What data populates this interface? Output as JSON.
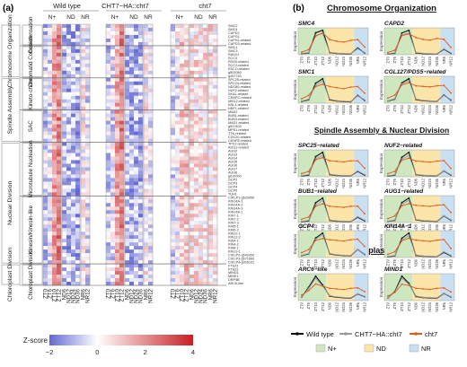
{
  "panel_a": {
    "letter": "(a)",
    "groups": [
      "Wild type",
      "CHT7−HA::cht7",
      "cht7"
    ],
    "subgroups": [
      "N+",
      "ND",
      "NR"
    ],
    "columns": [
      "ZT0",
      "ZT6",
      "ZT10",
      "ZT12",
      "ND6",
      "ND12",
      "ND24",
      "ND36",
      "NR6",
      "NR12"
    ],
    "categories": [
      {
        "name": "Chromosome Organization",
        "subs": [
          {
            "name": "Con-densation",
            "genes": [
              "SMC2",
              "SMC4",
              "CAPD2",
              "CAPG1",
              "CAPH1-related",
              "CAPD3-related"
            ]
          },
          {
            "name": "Chromatid Cohesion",
            "genes": [
              "SMC1",
              "SMC3",
              "RAD21",
              "SCC3",
              "PDS5-related",
              "SCC2-related",
              "ESCO-related",
              "g502050",
              "g457740"
            ]
          }
        ]
      },
      {
        "name": "Spindle Assembly",
        "subs": [
          {
            "name": "Kineto-chore",
            "genes": [
              "SPC25-related",
              "SPC24-related",
              "NDC80-related",
              "NUF2-related",
              "SKA1-related",
              "CENPC-related",
              "MIS12-related",
              "KNL1-related",
              "NNF1-related"
            ]
          },
          {
            "name": "SAC",
            "genes": [
              "MAD2",
              "BUB1-related",
              "BUB3-related",
              "MAD1-related",
              "g537400",
              "MPS1-related",
              "TTK-related",
              "CDC20-related",
              "CENPE-related"
            ]
          }
        ]
      },
      {
        "name": "Nuclear Division",
        "subs": [
          {
            "name": "Microtubule Nucleation",
            "genes": [
              "TPX2-related",
              "AUG1-related",
              "AUG2",
              "AUG3",
              "AUG4",
              "AUG5",
              "AUG6",
              "AUG7",
              "AUG8",
              "g610000",
              "GCP2",
              "GCP3",
              "GCP4",
              "GCP5",
              "TUH1"
            ]
          },
          {
            "name": "Kinesin/Kinesin-like",
            "genes": [
              "CrKLP1-g520050",
              "KIN14A-1",
              "KIN14A-2",
              "KIN14A-3",
              "KIN14B-1",
              "KIN7-1",
              "KIN7-2",
              "KIN7-3",
              "KIN5-1",
              "KIN5-2",
              "KIN12-1",
              "KIN12-2",
              "KIN4-1",
              "KIN4-2",
              "KIN8-1",
              "KIN13-1",
              "CrKLP2-g542430",
              "CrKLP3-g571660",
              "CrKLP4-g006101"
            ]
          }
        ]
      },
      {
        "name": "Chloroplast Division",
        "subs": [
          {
            "name": "Chloroplast Division",
            "genes": [
              "FTSZ1",
              "FTSZ2",
              "MIND1",
              "MINE1",
              "DRP5B",
              "ARC6-like"
            ]
          }
        ]
      }
    ],
    "scale": {
      "title": "Z-score",
      "ticks": [
        "−2",
        "0",
        "2",
        "4"
      ]
    }
  },
  "panel_b": {
    "letter": "(b)",
    "sections": [
      "Chromosome Organization",
      "Spindle Assembly & Nuclear Division",
      "Chloroplast Division"
    ],
    "ylabel": "Expression",
    "x_ticks": [
      "ZT0",
      "ZT6",
      "ZT10",
      "ZT12",
      "ND6",
      "ND12",
      "ND24",
      "ND36",
      "NR6",
      "NR12"
    ],
    "legend": {
      "lines": [
        {
          "name": "Wild type",
          "color": "#111111"
        },
        {
          "name": "CHT7−HA::cht7",
          "color": "#9a9a9a"
        },
        {
          "name": "cht7",
          "color": "#e05a20"
        }
      ],
      "areas": [
        {
          "name": "N+",
          "color": "#cfe7bf"
        },
        {
          "name": "ND",
          "color": "#fbe5a8"
        },
        {
          "name": "NR",
          "color": "#c9dff2"
        }
      ]
    }
  },
  "chart_data": [
    {
      "type": "heatmap",
      "title": "",
      "columns": [
        "ZT0",
        "ZT6",
        "ZT10",
        "ZT12",
        "ND6",
        "ND12",
        "ND24",
        "ND36",
        "NR6",
        "NR12"
      ],
      "value_range": [
        -2,
        4
      ],
      "note_rows": "gene rows listed in panel_a.categories"
    },
    {
      "type": "line",
      "title": "SMC4",
      "x": [
        "ZT0",
        "ZT6",
        "ZT10",
        "ZT12",
        "ND6",
        "ND12",
        "ND24",
        "ND36",
        "NR6",
        "NR12"
      ],
      "ylabel": "Expression",
      "series": [
        {
          "name": "Wild type",
          "values": [
            120,
            200,
            2600,
            2900,
            250,
            150,
            120,
            100,
            800,
            200
          ]
        },
        {
          "name": "CHT7−HA::cht7",
          "values": [
            150,
            250,
            2300,
            2500,
            300,
            180,
            150,
            130,
            700,
            250
          ]
        },
        {
          "name": "cht7",
          "values": [
            300,
            600,
            2200,
            2600,
            1800,
            1600,
            1500,
            1700,
            1800,
            900
          ]
        }
      ]
    },
    {
      "type": "line",
      "title": "CAPD2",
      "x": [
        "ZT0",
        "ZT6",
        "ZT10",
        "ZT12",
        "ND6",
        "ND12",
        "ND24",
        "ND36",
        "NR6",
        "NR12"
      ],
      "ylabel": "Expression",
      "series": [
        {
          "name": "Wild type",
          "values": [
            100,
            150,
            2400,
            2700,
            200,
            120,
            100,
            90,
            600,
            150
          ]
        },
        {
          "name": "CHT7−HA::cht7",
          "values": [
            120,
            200,
            2200,
            2400,
            250,
            150,
            130,
            110,
            650,
            200
          ]
        },
        {
          "name": "cht7",
          "values": [
            250,
            500,
            2100,
            2300,
            1900,
            1700,
            1600,
            1800,
            1700,
            800
          ]
        }
      ]
    },
    {
      "type": "line",
      "title": "SMC1",
      "x": [
        "ZT0",
        "ZT6",
        "ZT10",
        "ZT12",
        "ND6",
        "ND12",
        "ND24",
        "ND36",
        "NR6",
        "NR12"
      ],
      "ylabel": "Expression",
      "series": [
        {
          "name": "Wild type",
          "values": [
            150,
            300,
            1800,
            2200,
            300,
            200,
            150,
            120,
            700,
            250
          ]
        },
        {
          "name": "CHT7−HA::cht7",
          "values": [
            180,
            350,
            1600,
            2000,
            350,
            230,
            180,
            150,
            650,
            300
          ]
        },
        {
          "name": "cht7",
          "values": [
            400,
            700,
            1500,
            1700,
            1500,
            1400,
            1300,
            1450,
            1500,
            900
          ]
        }
      ]
    },
    {
      "type": "line",
      "title": "CGL127/PDS5−related",
      "x": [
        "ZT0",
        "ZT6",
        "ZT10",
        "ZT12",
        "ND6",
        "ND12",
        "ND24",
        "ND36",
        "NR6",
        "NR12"
      ],
      "ylabel": "Expression",
      "series": [
        {
          "name": "Wild type",
          "values": [
            200,
            400,
            2000,
            2400,
            350,
            250,
            200,
            180,
            800,
            300
          ]
        },
        {
          "name": "CHT7−HA::cht7",
          "values": [
            220,
            450,
            1900,
            2200,
            400,
            280,
            230,
            200,
            750,
            350
          ]
        },
        {
          "name": "cht7",
          "values": [
            500,
            800,
            1800,
            2000,
            1700,
            1650,
            1600,
            1700,
            1750,
            1000
          ]
        }
      ]
    },
    {
      "type": "line",
      "title": "SPC25−related",
      "x": [
        "ZT0",
        "ZT6",
        "ZT10",
        "ZT12",
        "ND6",
        "ND12",
        "ND24",
        "ND36",
        "NR6",
        "NR12"
      ],
      "ylabel": "Expression",
      "series": [
        {
          "name": "Wild type",
          "values": [
            80,
            150,
            1900,
            2300,
            200,
            120,
            100,
            90,
            500,
            150
          ]
        },
        {
          "name": "CHT7−HA::cht7",
          "values": [
            100,
            200,
            1700,
            2000,
            250,
            150,
            120,
            100,
            550,
            200
          ]
        },
        {
          "name": "cht7",
          "values": [
            300,
            500,
            1600,
            1800,
            1500,
            1450,
            1400,
            1500,
            1500,
            800
          ]
        }
      ]
    },
    {
      "type": "line",
      "title": "NUF2−related",
      "x": [
        "ZT0",
        "ZT6",
        "ZT10",
        "ZT12",
        "ND6",
        "ND12",
        "ND24",
        "ND36",
        "NR6",
        "NR12"
      ],
      "ylabel": "Expression",
      "series": [
        {
          "name": "Wild type",
          "values": [
            90,
            160,
            2000,
            2500,
            220,
            130,
            110,
            100,
            600,
            160
          ]
        },
        {
          "name": "CHT7−HA::cht7",
          "values": [
            110,
            200,
            1800,
            2200,
            260,
            160,
            130,
            110,
            620,
            210
          ]
        },
        {
          "name": "cht7",
          "values": [
            320,
            550,
            1700,
            1900,
            1600,
            1550,
            1500,
            1600,
            1650,
            850
          ]
        }
      ]
    },
    {
      "type": "line",
      "title": "BUB1−related",
      "x": [
        "ZT0",
        "ZT6",
        "ZT10",
        "ZT12",
        "ND6",
        "ND12",
        "ND24",
        "ND36",
        "NR6",
        "NR12"
      ],
      "ylabel": "Expression",
      "series": [
        {
          "name": "Wild type",
          "values": [
            70,
            140,
            1700,
            2100,
            180,
            110,
            90,
            80,
            450,
            140
          ]
        },
        {
          "name": "CHT7−HA::cht7",
          "values": [
            90,
            180,
            1500,
            1900,
            220,
            140,
            110,
            90,
            500,
            190
          ]
        },
        {
          "name": "cht7",
          "values": [
            280,
            480,
            1400,
            1600,
            1400,
            1350,
            1300,
            1400,
            1400,
            750
          ]
        }
      ]
    },
    {
      "type": "line",
      "title": "AUG1−related",
      "x": [
        "ZT0",
        "ZT6",
        "ZT10",
        "ZT12",
        "ND6",
        "ND12",
        "ND24",
        "ND36",
        "NR6",
        "NR12"
      ],
      "ylabel": "Expression",
      "series": [
        {
          "name": "Wild type",
          "values": [
            100,
            200,
            1800,
            2200,
            250,
            150,
            120,
            100,
            600,
            200
          ]
        },
        {
          "name": "CHT7−HA::cht7",
          "values": [
            120,
            240,
            1650,
            2000,
            280,
            180,
            150,
            120,
            620,
            240
          ]
        },
        {
          "name": "cht7",
          "values": [
            350,
            600,
            1500,
            1700,
            1550,
            1500,
            1450,
            1550,
            1600,
            900
          ]
        }
      ]
    },
    {
      "type": "line",
      "title": "GCP4",
      "x": [
        "ZT0",
        "ZT6",
        "ZT10",
        "ZT12",
        "ND6",
        "ND12",
        "ND24",
        "ND36",
        "NR6",
        "NR12"
      ],
      "ylabel": "Expression",
      "series": [
        {
          "name": "Wild type",
          "values": [
            150,
            300,
            1600,
            2000,
            300,
            200,
            160,
            140,
            650,
            250
          ]
        },
        {
          "name": "CHT7−HA::cht7",
          "values": [
            170,
            330,
            1500,
            1850,
            330,
            220,
            180,
            160,
            640,
            280
          ]
        },
        {
          "name": "cht7",
          "values": [
            400,
            650,
            1400,
            1550,
            1450,
            1400,
            1350,
            1450,
            1500,
            900
          ]
        }
      ]
    },
    {
      "type": "line",
      "title": "KIN14A−1",
      "x": [
        "ZT0",
        "ZT6",
        "ZT10",
        "ZT12",
        "ND6",
        "ND12",
        "ND24",
        "ND36",
        "NR6",
        "NR12"
      ],
      "ylabel": "Expression",
      "series": [
        {
          "name": "Wild type",
          "values": [
            60,
            120,
            1500,
            1900,
            160,
            100,
            80,
            70,
            400,
            120
          ]
        },
        {
          "name": "CHT7−HA::cht7",
          "values": [
            80,
            150,
            1350,
            1700,
            200,
            120,
            100,
            80,
            450,
            160
          ]
        },
        {
          "name": "cht7",
          "values": [
            250,
            450,
            1300,
            1500,
            1350,
            1300,
            1250,
            1350,
            1400,
            700
          ]
        }
      ]
    },
    {
      "type": "line",
      "title": "ARC6−like",
      "x": [
        "ZT0",
        "ZT6",
        "ZT10",
        "ZT12",
        "ND6",
        "ND12",
        "ND24",
        "ND36",
        "NR6",
        "NR12"
      ],
      "ylabel": "Expression",
      "series": [
        {
          "name": "Wild type",
          "values": [
            300,
            1200,
            2200,
            1400,
            400,
            300,
            250,
            220,
            600,
            350
          ]
        },
        {
          "name": "CHT7−HA::cht7",
          "values": [
            320,
            1100,
            2000,
            1300,
            450,
            330,
            280,
            250,
            620,
            380
          ]
        },
        {
          "name": "cht7",
          "values": [
            500,
            900,
            1500,
            1300,
            1100,
            1050,
            1000,
            1100,
            1150,
            800
          ]
        }
      ]
    },
    {
      "type": "line",
      "title": "MIND1",
      "x": [
        "ZT0",
        "ZT6",
        "ZT10",
        "ZT12",
        "ND6",
        "ND12",
        "ND24",
        "ND36",
        "NR6",
        "NR12"
      ],
      "ylabel": "Expression",
      "series": [
        {
          "name": "Wild type",
          "values": [
            250,
            900,
            2400,
            1700,
            400,
            300,
            260,
            230,
            700,
            350
          ]
        },
        {
          "name": "CHT7−HA::cht7",
          "values": [
            270,
            850,
            2200,
            1600,
            450,
            330,
            290,
            260,
            720,
            380
          ]
        },
        {
          "name": "cht7",
          "values": [
            450,
            800,
            1600,
            1500,
            1200,
            1150,
            1100,
            1200,
            1250,
            850
          ]
        }
      ]
    }
  ]
}
